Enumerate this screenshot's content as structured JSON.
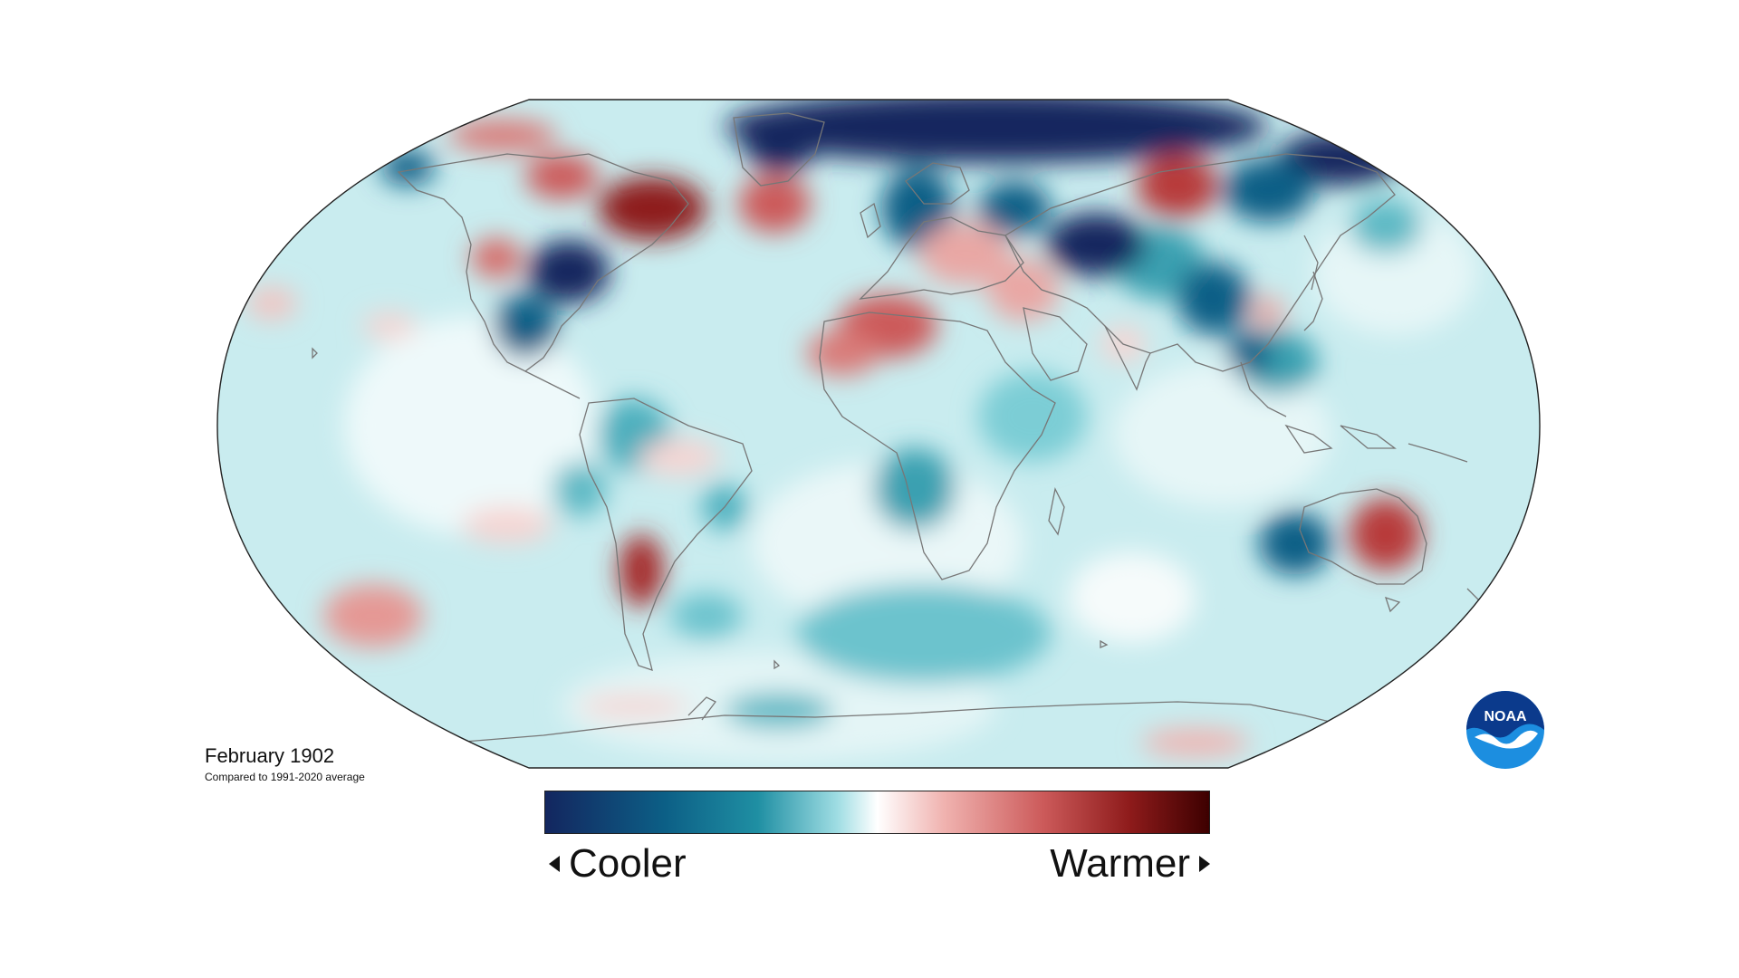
{
  "map": {
    "caption_title": "February 1902",
    "caption_subtitle": "Compared to 1991-2020 average",
    "projection": "robinson",
    "ocean_base_color": "#c9ecef",
    "coastline_color": "#777777"
  },
  "legend": {
    "cooler_label": "Cooler",
    "warmer_label": "Warmer",
    "colors": [
      "#13265f",
      "#0c5f86",
      "#1f8fa3",
      "#9fdde3",
      "#ffffff",
      "#f0b3b0",
      "#cc5a5a",
      "#8e1b1b",
      "#3d0000"
    ]
  },
  "logo": {
    "text": "NOAA",
    "icon": "noaa-logo-icon",
    "colors": {
      "dark": "#0b3a8c",
      "light": "#1c8ee0"
    }
  }
}
